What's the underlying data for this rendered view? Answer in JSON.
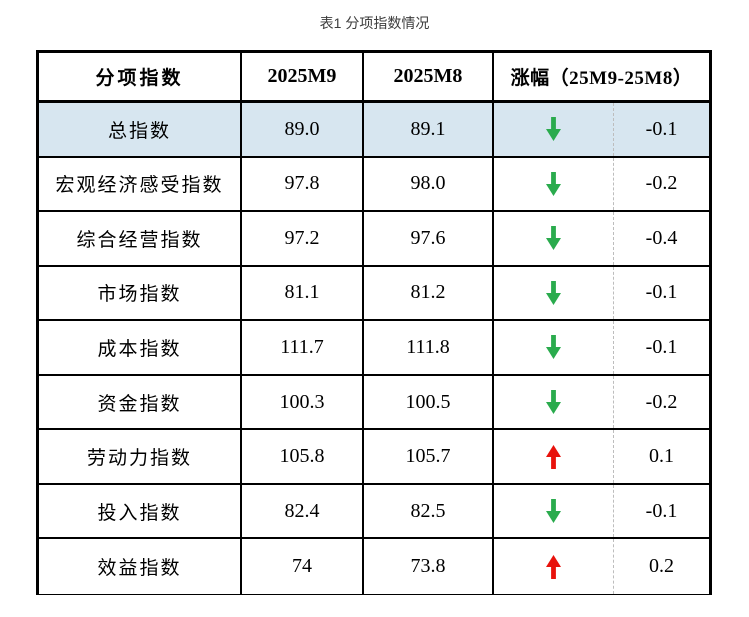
{
  "caption": "表1 分项指数情况",
  "table": {
    "headers": {
      "index_name": "分项指数",
      "month_current": "2025M9",
      "month_previous": "2025M8",
      "change": "涨幅（25M9-25M8）"
    },
    "rows": [
      {
        "label": "总指数",
        "m9": "89.0",
        "m8": "89.1",
        "direction": "down",
        "change": "-0.1",
        "highlight": true
      },
      {
        "label": "宏观经济感受指数",
        "m9": "97.8",
        "m8": "98.0",
        "direction": "down",
        "change": "-0.2",
        "highlight": false
      },
      {
        "label": "综合经营指数",
        "m9": "97.2",
        "m8": "97.6",
        "direction": "down",
        "change": "-0.4",
        "highlight": false
      },
      {
        "label": "市场指数",
        "m9": "81.1",
        "m8": "81.2",
        "direction": "down",
        "change": "-0.1",
        "highlight": false
      },
      {
        "label": "成本指数",
        "m9": "111.7",
        "m8": "111.8",
        "direction": "down",
        "change": "-0.1",
        "highlight": false
      },
      {
        "label": "资金指数",
        "m9": "100.3",
        "m8": "100.5",
        "direction": "down",
        "change": "-0.2",
        "highlight": false
      },
      {
        "label": "劳动力指数",
        "m9": "105.8",
        "m8": "105.7",
        "direction": "up",
        "change": "0.1",
        "highlight": false
      },
      {
        "label": "投入指数",
        "m9": "82.4",
        "m8": "82.5",
        "direction": "down",
        "change": "-0.1",
        "highlight": false
      },
      {
        "label": "效益指数",
        "m9": "74",
        "m8": "73.8",
        "direction": "up",
        "change": "0.2",
        "highlight": false
      }
    ],
    "colors": {
      "up_arrow": "#e8120c",
      "down_arrow": "#2aab4d",
      "highlight_bg": "#d7e6f0",
      "border": "#000000",
      "dashed_divider": "#bdbdbd"
    }
  }
}
